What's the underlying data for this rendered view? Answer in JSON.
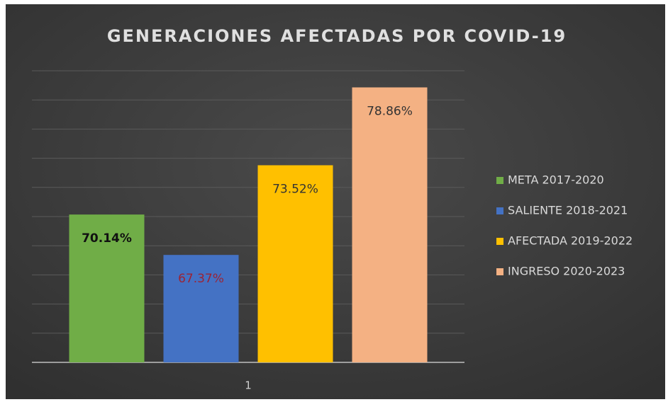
{
  "chart_data": {
    "type": "bar",
    "title": "GENERACIONES AFECTADAS POR COVID-19",
    "categories": [
      "1"
    ],
    "series": [
      {
        "name": "META 2017-2020",
        "color": "#70ad47",
        "label_color": "#111111",
        "values": [
          70.14
        ],
        "value_labels": [
          "70.14%"
        ]
      },
      {
        "name": "SALIENTE 2018-2021",
        "color": "#4472c4",
        "label_color": "#9b2335",
        "values": [
          67.37
        ],
        "value_labels": [
          "67.37%"
        ]
      },
      {
        "name": "AFECTADA 2019-2022",
        "color": "#ffc000",
        "label_color": "#333333",
        "values": [
          73.52
        ],
        "value_labels": [
          "73.52%"
        ]
      },
      {
        "name": "INGRESO 2020-2023",
        "color": "#f4b183",
        "label_color": "#333333",
        "values": [
          78.86
        ],
        "value_labels": [
          "78.86%"
        ]
      }
    ],
    "ylim": [
      60,
      80
    ],
    "yticks": [
      60,
      62,
      64,
      66,
      68,
      70,
      72,
      74,
      76,
      78,
      80
    ],
    "grid": true,
    "legend": "right"
  }
}
